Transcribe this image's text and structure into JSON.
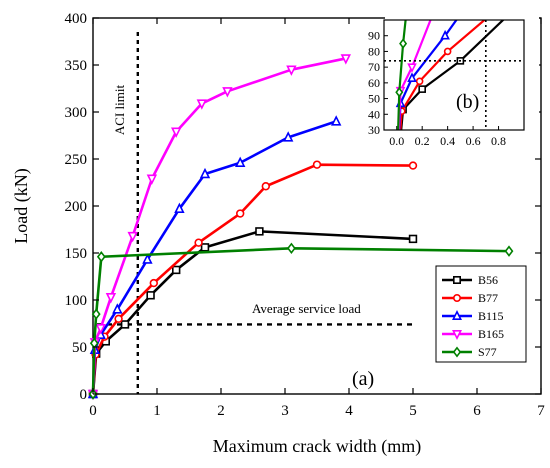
{
  "chart_data": [
    {
      "type": "line",
      "title": "",
      "xlabel": "Maximum crack width (mm)",
      "ylabel": "Load (kN)",
      "xlim": [
        0,
        7
      ],
      "ylim": [
        0,
        400
      ],
      "xticks": [
        "0",
        "1",
        "2",
        "3",
        "4",
        "5",
        "6",
        "7"
      ],
      "yticks": [
        "0",
        "50",
        "100",
        "150",
        "200",
        "250",
        "300",
        "350",
        "400"
      ],
      "panel_label": "(a)",
      "legend_position": "bottom-right",
      "annotations": {
        "aci_limit": {
          "text": "ACI limit",
          "x": 0.7
        },
        "service_load": {
          "text": "Average service load",
          "y": 74
        }
      },
      "series": [
        {
          "name": "B56",
          "color": "#000000",
          "marker": "square",
          "x": [
            0,
            0.05,
            0.2,
            0.5,
            0.9,
            1.3,
            1.75,
            2.6,
            5.0
          ],
          "y": [
            0,
            43,
            56,
            74,
            105,
            132,
            156,
            173,
            165
          ]
        },
        {
          "name": "B77",
          "color": "#ff0000",
          "marker": "circle",
          "x": [
            0,
            0.04,
            0.18,
            0.4,
            0.95,
            1.65,
            2.3,
            2.7,
            3.5,
            5.0
          ],
          "y": [
            0,
            42,
            61,
            80,
            118,
            161,
            192,
            221,
            244,
            243
          ]
        },
        {
          "name": "B115",
          "color": "#0000ff",
          "marker": "triangle-up",
          "x": [
            0,
            0.03,
            0.12,
            0.38,
            0.85,
            1.35,
            1.75,
            2.3,
            3.05,
            3.8
          ],
          "y": [
            0,
            47,
            63,
            90,
            143,
            197,
            234,
            246,
            273,
            290
          ]
        },
        {
          "name": "B165",
          "color": "#ff00ff",
          "marker": "triangle-down",
          "x": [
            0,
            0.03,
            0.12,
            0.28,
            0.62,
            0.92,
            1.3,
            1.7,
            2.1,
            3.1,
            3.95
          ],
          "y": [
            0,
            55,
            70,
            103,
            168,
            229,
            279,
            309,
            322,
            345,
            357
          ]
        },
        {
          "name": "S77",
          "color": "#008000",
          "marker": "diamond",
          "x": [
            0,
            0.02,
            0.05,
            0.13,
            3.1,
            6.5
          ],
          "y": [
            0,
            54,
            85,
            146,
            155,
            152
          ]
        }
      ]
    },
    {
      "type": "line",
      "title": "",
      "panel_label": "(b)",
      "xlim": [
        -0.1,
        1.0
      ],
      "ylim": [
        30,
        100
      ],
      "xticks": [
        "0.0",
        "0.2",
        "0.4",
        "0.6",
        "0.8"
      ],
      "yticks": [
        "30",
        "40",
        "50",
        "60",
        "70",
        "80",
        "90"
      ],
      "reference_lines": {
        "x": 0.7,
        "y": 74
      },
      "series_ref": "same series as panel (a), zoomed"
    }
  ]
}
